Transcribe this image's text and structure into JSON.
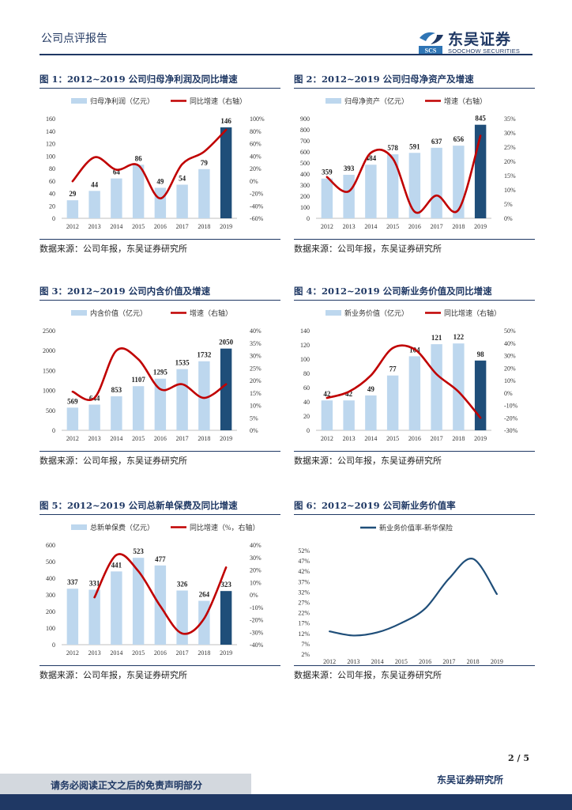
{
  "header": {
    "report_type": "公司点评报告",
    "logo_cn": "东吴证券",
    "logo_en": "SOOCHOW SECURITIES",
    "logo_mark": "SCS"
  },
  "page": {
    "number": "2 / 5"
  },
  "footer": {
    "disclaimer": "请务必阅读正文之后的免责声明部分",
    "institute": "东吴证券研究所"
  },
  "colors": {
    "bar": "#bdd7ee",
    "bar_highlight": "#1f4e79",
    "line": "#c00000",
    "navy": "#1f3864",
    "line_blue": "#1f4e79"
  },
  "figures": [
    {
      "title": "图 1：2012~2019 公司归母净利润及同比增速",
      "source": "数据来源：公司年报，东吴证券研究所",
      "chart_data": {
        "type": "bar",
        "categories": [
          "2012",
          "2013",
          "2014",
          "2015",
          "2016",
          "2017",
          "2018",
          "2019"
        ],
        "series": [
          {
            "name": "归母净利润（亿元）",
            "type": "bar",
            "values": [
              29,
              44,
              64,
              86,
              49,
              54,
              79,
              146
            ]
          },
          {
            "name": "同比增速（右轴）",
            "type": "line",
            "values": [
              -0.5,
              38,
              18,
              25,
              -28,
              27,
              47,
              82
            ]
          }
        ],
        "ylim_left": [
          0,
          160
        ],
        "left_ticks": [
          0,
          20,
          40,
          60,
          80,
          100,
          120,
          140,
          160
        ],
        "ylim_right": [
          -60,
          100
        ],
        "right_ticks": [
          "-60%",
          "-40%",
          "-20%",
          "0%",
          "20%",
          "40%",
          "60%",
          "80%",
          "100%"
        ],
        "data_labels": [
          "29",
          "44",
          "64",
          "86",
          "49",
          "54",
          "79",
          "146"
        ]
      }
    },
    {
      "title": "图 2：2012~2019 公司归母净资产及增速",
      "source": "数据来源：公司年报，东吴证券研究所",
      "chart_data": {
        "type": "bar",
        "categories": [
          "2012",
          "2013",
          "2014",
          "2015",
          "2016",
          "2017",
          "2018",
          "2019"
        ],
        "series": [
          {
            "name": "归母净资产（亿元）",
            "type": "bar",
            "values": [
              359,
              393,
              484,
              578,
              591,
              637,
              656,
              845
            ]
          },
          {
            "name": "增速（右轴）",
            "type": "line",
            "values": [
              14.5,
              9.5,
              23,
              21,
              2.3,
              8,
              3,
              29
            ]
          }
        ],
        "ylim_left": [
          0,
          900
        ],
        "left_ticks": [
          0,
          100,
          200,
          300,
          400,
          500,
          600,
          700,
          800,
          900
        ],
        "ylim_right": [
          0,
          35
        ],
        "right_ticks": [
          "0%",
          "5%",
          "10%",
          "15%",
          "20%",
          "25%",
          "30%",
          "35%"
        ],
        "data_labels": [
          "359",
          "393",
          "484",
          "578",
          "591",
          "637",
          "656",
          "845"
        ]
      }
    },
    {
      "title": "图 3：2012~2019 公司内含价值及增速",
      "source": "数据来源：公司年报，东吴证券研究所",
      "chart_data": {
        "type": "bar",
        "categories": [
          "2012",
          "2013",
          "2014",
          "2015",
          "2016",
          "2017",
          "2018",
          "2019"
        ],
        "series": [
          {
            "name": "内含价值（亿元）",
            "type": "bar",
            "values": [
              569,
              644,
              853,
              1107,
              1295,
              1535,
              1732,
              2050
            ]
          },
          {
            "name": "增速（右轴）",
            "type": "line",
            "values": [
              15.5,
              13,
              32,
              28.5,
              16.5,
              18.5,
              13,
              18.5
            ]
          }
        ],
        "ylim_left": [
          0,
          2500
        ],
        "left_ticks": [
          0,
          500,
          1000,
          1500,
          2000,
          2500
        ],
        "ylim_right": [
          0,
          40
        ],
        "right_ticks": [
          "0%",
          "5%",
          "10%",
          "15%",
          "20%",
          "25%",
          "30%",
          "35%",
          "40%"
        ],
        "data_labels": [
          "569",
          "644",
          "853",
          "1107",
          "1295",
          "1535",
          "1732",
          "2050"
        ]
      }
    },
    {
      "title": "图 4：2012~2019 公司新业务价值及同比增速",
      "source": "数据来源：公司年报，东吴证券研究所",
      "chart_data": {
        "type": "bar",
        "categories": [
          "2012",
          "2013",
          "2014",
          "2015",
          "2016",
          "2017",
          "2018",
          "2019"
        ],
        "series": [
          {
            "name": "新业务价值（亿元）",
            "type": "bar",
            "values": [
              42,
              42,
              49,
              77,
              104,
              121,
              122,
              98
            ]
          },
          {
            "name": "同比增速（右轴）",
            "type": "line",
            "values": [
              -4,
              1,
              14,
              36,
              35,
              15,
              1,
              -20
            ]
          }
        ],
        "ylim_left": [
          0,
          140
        ],
        "left_ticks": [
          0,
          20,
          40,
          60,
          80,
          100,
          120,
          140
        ],
        "ylim_right": [
          -30,
          50
        ],
        "right_ticks": [
          "-30%",
          "-20%",
          "-10%",
          "0%",
          "10%",
          "20%",
          "30%",
          "40%",
          "50%"
        ],
        "data_labels": [
          "42",
          "42",
          "49",
          "77",
          "104",
          "121",
          "122",
          "98"
        ]
      }
    },
    {
      "title": "图 5：2012~2019 公司总新单保费及同比增速",
      "source": "数据来源：公司年报，东吴证券研究所",
      "chart_data": {
        "type": "bar",
        "categories": [
          "2012",
          "2013",
          "2014",
          "2015",
          "2016",
          "2017",
          "2018",
          "2019"
        ],
        "series": [
          {
            "name": "总新单保费（亿元）",
            "type": "bar",
            "values": [
              337,
              331,
              441,
              523,
              477,
              326,
              264,
              323
            ]
          },
          {
            "name": "同比增速（%，右轴）",
            "type": "line",
            "values": [
              null,
              -2,
              32,
              19,
              -9,
              -31,
              -19,
              22
            ]
          }
        ],
        "ylim_left": [
          0,
          600
        ],
        "left_ticks": [
          0,
          100,
          200,
          300,
          400,
          500,
          600
        ],
        "ylim_right": [
          -40,
          40
        ],
        "right_ticks": [
          "-40%",
          "-30%",
          "-20%",
          "-10%",
          "0%",
          "10%",
          "20%",
          "30%",
          "40%"
        ],
        "data_labels": [
          "337",
          "331",
          "441",
          "523",
          "477",
          "326",
          "264",
          "323"
        ]
      }
    },
    {
      "title": "图 6：2012~2019 公司新业务价值率",
      "source": "数据来源：公司年报，东吴证券研究所",
      "chart_data": {
        "type": "line",
        "categories": [
          "2012",
          "2013",
          "2014",
          "2015",
          "2016",
          "2017",
          "2018",
          "2019"
        ],
        "series": [
          {
            "name": "新业务价值率-新华保险",
            "type": "line",
            "values": [
              13,
              11,
              12.5,
              17,
              24,
              38.5,
              48,
              31
            ]
          }
        ],
        "ylim": [
          2,
          52
        ],
        "ticks": [
          "2%",
          "7%",
          "12%",
          "17%",
          "22%",
          "27%",
          "32%",
          "37%",
          "42%",
          "47%",
          "52%"
        ]
      }
    }
  ]
}
